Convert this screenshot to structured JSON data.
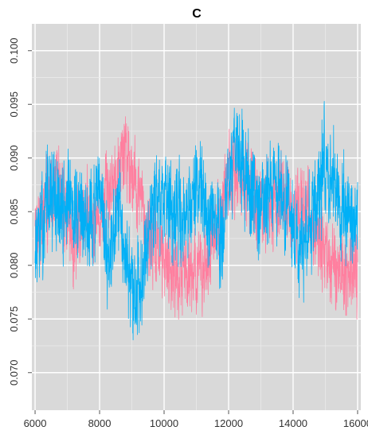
{
  "chart_data": {
    "type": "line",
    "title": "C",
    "xlabel": "",
    "ylabel": "",
    "xlim": [
      5900,
      16100
    ],
    "ylim": [
      0.0665,
      0.1025
    ],
    "x_ticks": [
      6000,
      8000,
      10000,
      12000,
      14000,
      16000
    ],
    "x_tick_labels": [
      "6000",
      "8000",
      "10000",
      "12000",
      "14000",
      "16000"
    ],
    "y_ticks": [
      0.07,
      0.075,
      0.08,
      0.085,
      0.09,
      0.095,
      0.1
    ],
    "y_tick_labels": [
      "0.070",
      "0.075",
      "0.080",
      "0.085",
      "0.090",
      "0.095",
      "0.100"
    ],
    "grid": true,
    "background": "#d9d9d9",
    "x_range": [
      6000,
      16000
    ],
    "series": [
      {
        "color": "#ff7f9f",
        "anchors": [
          [
            6000,
            0.0835
          ],
          [
            6300,
            0.085
          ],
          [
            6700,
            0.088
          ],
          [
            7200,
            0.082
          ],
          [
            7600,
            0.085
          ],
          [
            8000,
            0.084
          ],
          [
            8400,
            0.088
          ],
          [
            8800,
            0.091
          ],
          [
            9200,
            0.087
          ],
          [
            9600,
            0.082
          ],
          [
            10000,
            0.081
          ],
          [
            10400,
            0.079
          ],
          [
            10800,
            0.08
          ],
          [
            11200,
            0.079
          ],
          [
            11600,
            0.083
          ],
          [
            12000,
            0.088
          ],
          [
            12400,
            0.089
          ],
          [
            12800,
            0.086
          ],
          [
            13200,
            0.085
          ],
          [
            13600,
            0.087
          ],
          [
            14000,
            0.084
          ],
          [
            14400,
            0.085
          ],
          [
            14800,
            0.082
          ],
          [
            15200,
            0.08
          ],
          [
            15600,
            0.079
          ],
          [
            16000,
            0.08
          ]
        ],
        "amplitude": 0.0042,
        "min": 0.073,
        "max": 0.0965,
        "seed": 7
      },
      {
        "color": "#00b0f6",
        "anchors": [
          [
            6000,
            0.082
          ],
          [
            6200,
            0.083
          ],
          [
            6400,
            0.087
          ],
          [
            6800,
            0.085
          ],
          [
            7200,
            0.086
          ],
          [
            7600,
            0.084
          ],
          [
            8000,
            0.086
          ],
          [
            8300,
            0.08
          ],
          [
            8600,
            0.085
          ],
          [
            8900,
            0.08
          ],
          [
            9100,
            0.076
          ],
          [
            9400,
            0.082
          ],
          [
            9800,
            0.087
          ],
          [
            10200,
            0.084
          ],
          [
            10600,
            0.085
          ],
          [
            11000,
            0.087
          ],
          [
            11400,
            0.084
          ],
          [
            11800,
            0.083
          ],
          [
            12200,
            0.092
          ],
          [
            12600,
            0.088
          ],
          [
            13000,
            0.085
          ],
          [
            13400,
            0.087
          ],
          [
            13800,
            0.086
          ],
          [
            14200,
            0.082
          ],
          [
            14600,
            0.084
          ],
          [
            15000,
            0.09
          ],
          [
            15400,
            0.086
          ],
          [
            15800,
            0.084
          ],
          [
            16000,
            0.085
          ]
        ],
        "amplitude": 0.0048,
        "min": 0.0675,
        "max": 0.101,
        "seed": 13
      }
    ]
  }
}
